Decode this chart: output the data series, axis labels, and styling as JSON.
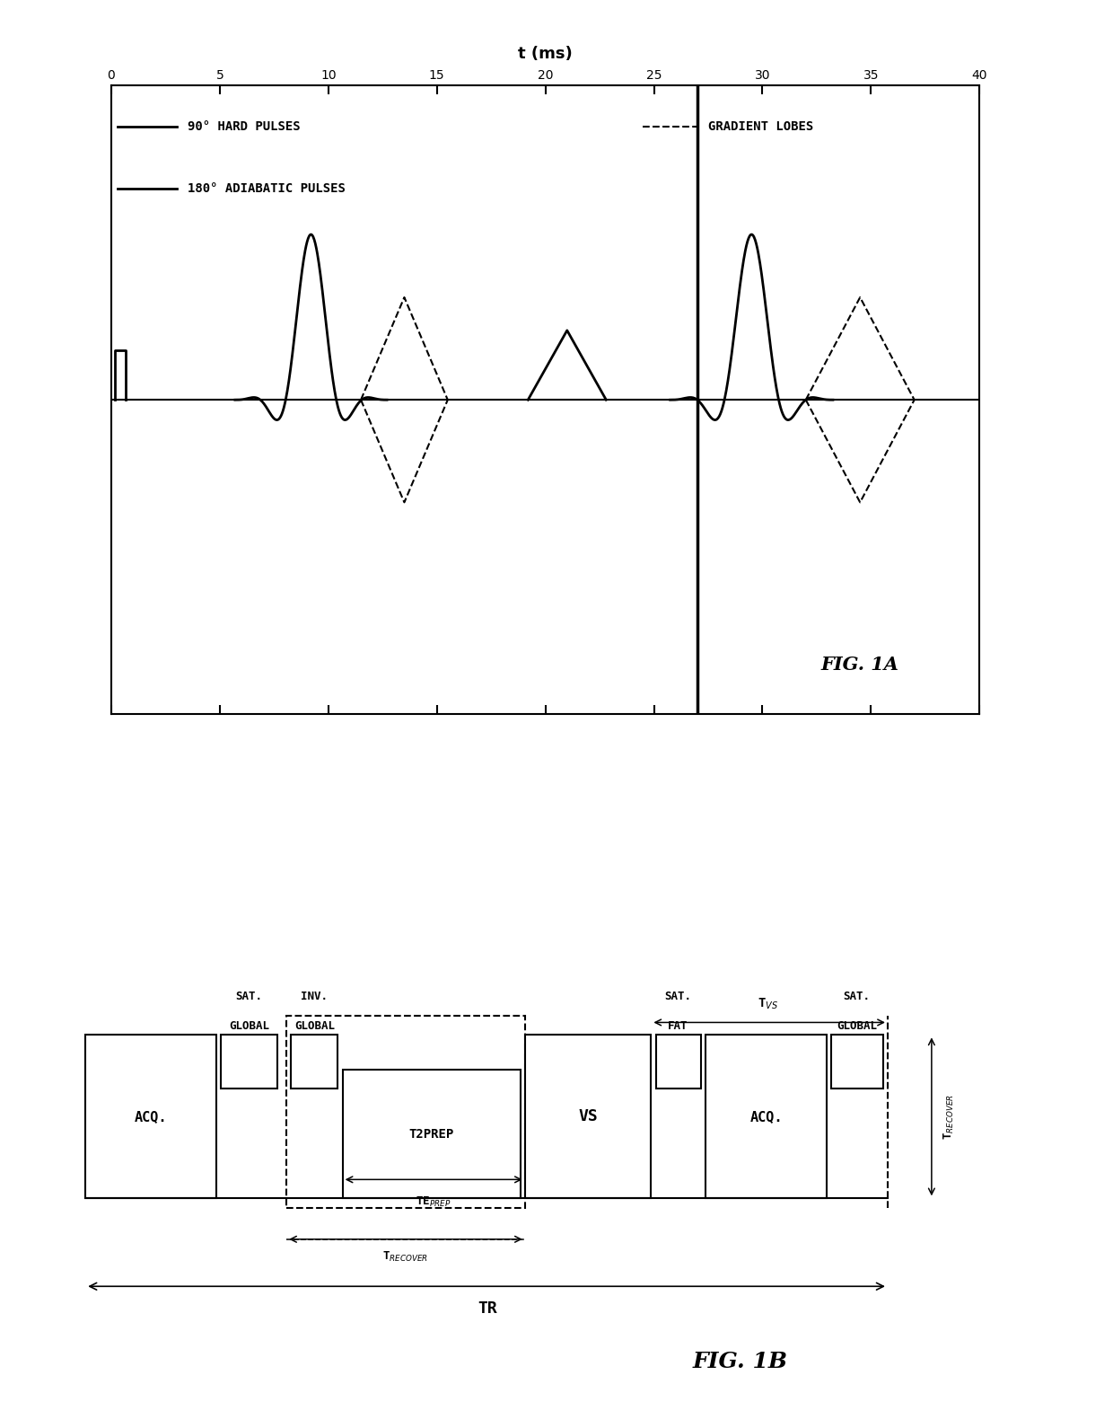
{
  "fig1a_title": "FIG. 1A",
  "fig1b_title": "FIG. 1B",
  "xlabel": "t (ms)",
  "xticks": [
    0,
    5,
    10,
    15,
    20,
    25,
    30,
    35,
    40
  ],
  "xlim": [
    0,
    40
  ],
  "legend_hard": "90° HARD PULSES",
  "legend_adiabatic": "180° ADIABATIC PULSES",
  "legend_gradient": "GRADIENT LOBES",
  "background": "#ffffff",
  "line_color": "#000000"
}
